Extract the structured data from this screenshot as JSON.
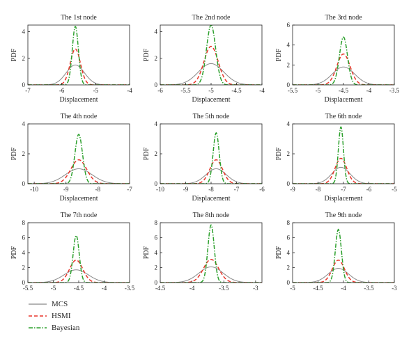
{
  "figure": {
    "panels": [
      {
        "title": "The 1st node",
        "xlabel": "Displacement",
        "ylabel": "PDF"
      },
      {
        "title": "The 2nd node",
        "xlabel": "Displacement",
        "ylabel": "PDF"
      },
      {
        "title": "The 3rd node",
        "xlabel": "Displacement",
        "ylabel": "PDF"
      },
      {
        "title": "The 4th node",
        "xlabel": "Displacement",
        "ylabel": "PDF"
      },
      {
        "title": "The 5th node",
        "xlabel": "Displacement",
        "ylabel": "PDF"
      },
      {
        "title": "The 6th node",
        "xlabel": "Displacement",
        "ylabel": "PDF"
      },
      {
        "title": "The 7th node",
        "xlabel": "Displacement",
        "ylabel": "PDF"
      },
      {
        "title": "The 8th node",
        "xlabel": "Displacement",
        "ylabel": "PDF"
      },
      {
        "title": "The 9th node",
        "xlabel": "Displacement",
        "ylabel": "PDF"
      }
    ]
  },
  "legend": {
    "items": [
      {
        "label": "MCS",
        "color": "#888888",
        "style": "solid"
      },
      {
        "label": "HSMI",
        "color": "#e8352a",
        "style": "dashed"
      },
      {
        "label": "Bayesian",
        "color": "#2ca02c",
        "style": "dashdot"
      }
    ]
  },
  "chart_data": [
    {
      "type": "line",
      "title": "The 1st node",
      "xlabel": "Displacement",
      "ylabel": "PDF",
      "xlim": [
        -7,
        -4
      ],
      "ylim": [
        0,
        4.5
      ],
      "xticks": [
        "-7",
        "-6",
        "-5",
        "-4"
      ],
      "yticks": [
        "0",
        "2",
        "4"
      ],
      "series": [
        {
          "name": "MCS",
          "mean": -5.6,
          "sd": 0.27,
          "peak": 1.5
        },
        {
          "name": "HSMI",
          "mean": -5.6,
          "sd": 0.15,
          "peak": 2.7
        },
        {
          "name": "Bayesian",
          "mean": -5.6,
          "sd": 0.09,
          "peak": 4.4
        }
      ]
    },
    {
      "type": "line",
      "title": "The 2nd node",
      "xlabel": "Displacement",
      "ylabel": "PDF",
      "xlim": [
        -6,
        -4
      ],
      "ylim": [
        0,
        4.5
      ],
      "xticks": [
        "-6",
        "-5.5",
        "-5",
        "-4.5",
        "-4"
      ],
      "yticks": [
        "0",
        "2",
        "4"
      ],
      "series": [
        {
          "name": "MCS",
          "mean": -5.0,
          "sd": 0.25,
          "peak": 1.6
        },
        {
          "name": "HSMI",
          "mean": -5.0,
          "sd": 0.14,
          "peak": 2.9
        },
        {
          "name": "Bayesian",
          "mean": -5.0,
          "sd": 0.09,
          "peak": 4.5
        }
      ]
    },
    {
      "type": "line",
      "title": "The 3rd node",
      "xlabel": "Displacement",
      "ylabel": "PDF",
      "xlim": [
        -5.5,
        -3.5
      ],
      "ylim": [
        0,
        6
      ],
      "xticks": [
        "-5.5",
        "-5",
        "-4.5",
        "-4",
        "-3.5"
      ],
      "yticks": [
        "0",
        "2",
        "4",
        "6"
      ],
      "series": [
        {
          "name": "MCS",
          "mean": -4.5,
          "sd": 0.22,
          "peak": 1.8
        },
        {
          "name": "HSMI",
          "mean": -4.5,
          "sd": 0.13,
          "peak": 3.1
        },
        {
          "name": "Bayesian",
          "mean": -4.5,
          "sd": 0.08,
          "peak": 4.8
        }
      ]
    },
    {
      "type": "line",
      "title": "The 4th node",
      "xlabel": "Displacement",
      "ylabel": "PDF",
      "xlim": [
        -10.2,
        -7
      ],
      "ylim": [
        0,
        4
      ],
      "xticks": [
        "-10",
        "-9",
        "-8",
        "-7"
      ],
      "yticks": [
        "0",
        "2",
        "4"
      ],
      "series": [
        {
          "name": "MCS",
          "mean": -8.6,
          "sd": 0.42,
          "peak": 1.0
        },
        {
          "name": "HSMI",
          "mean": -8.6,
          "sd": 0.25,
          "peak": 1.6
        },
        {
          "name": "Bayesian",
          "mean": -8.6,
          "sd": 0.12,
          "peak": 3.3
        }
      ]
    },
    {
      "type": "line",
      "title": "The 5th node",
      "xlabel": "Displacement",
      "ylabel": "PDF",
      "xlim": [
        -10,
        -6
      ],
      "ylim": [
        0,
        4
      ],
      "xticks": [
        "-10",
        "-9",
        "-8",
        "-7",
        "-6"
      ],
      "yticks": [
        "0",
        "2",
        "4"
      ],
      "series": [
        {
          "name": "MCS",
          "mean": -7.8,
          "sd": 0.4,
          "peak": 1.0
        },
        {
          "name": "HSMI",
          "mean": -7.8,
          "sd": 0.25,
          "peak": 1.6
        },
        {
          "name": "Bayesian",
          "mean": -7.8,
          "sd": 0.12,
          "peak": 3.4
        }
      ]
    },
    {
      "type": "line",
      "title": "The 6th node",
      "xlabel": "Displacement",
      "ylabel": "PDF",
      "xlim": [
        -9,
        -5
      ],
      "ylim": [
        0,
        4
      ],
      "xticks": [
        "-9",
        "-8",
        "-7",
        "-6",
        "-5"
      ],
      "yticks": [
        "0",
        "2",
        "4"
      ],
      "series": [
        {
          "name": "MCS",
          "mean": -7.1,
          "sd": 0.36,
          "peak": 1.1
        },
        {
          "name": "HSMI",
          "mean": -7.1,
          "sd": 0.23,
          "peak": 1.7
        },
        {
          "name": "Bayesian",
          "mean": -7.1,
          "sd": 0.1,
          "peak": 3.8
        }
      ]
    },
    {
      "type": "line",
      "title": "The 7th node",
      "xlabel": "Displacement",
      "ylabel": "PDF",
      "xlim": [
        -5.5,
        -3.5
      ],
      "ylim": [
        0,
        8
      ],
      "xticks": [
        "-5.5",
        "-5",
        "-4.5",
        "-4",
        "-3.5"
      ],
      "yticks": [
        "0",
        "2",
        "4",
        "6",
        "8"
      ],
      "series": [
        {
          "name": "MCS",
          "mean": -4.55,
          "sd": 0.24,
          "peak": 1.7
        },
        {
          "name": "HSMI",
          "mean": -4.55,
          "sd": 0.13,
          "peak": 3.0
        },
        {
          "name": "Bayesian",
          "mean": -4.55,
          "sd": 0.06,
          "peak": 6.3
        }
      ]
    },
    {
      "type": "line",
      "title": "The 8th node",
      "xlabel": "Displacement",
      "ylabel": "PDF",
      "xlim": [
        -4.5,
        -2.9
      ],
      "ylim": [
        0,
        8
      ],
      "xticks": [
        "-4.5",
        "-4",
        "-3.5",
        "-3"
      ],
      "yticks": [
        "0",
        "2",
        "4",
        "6",
        "8"
      ],
      "series": [
        {
          "name": "MCS",
          "mean": -3.7,
          "sd": 0.19,
          "peak": 2.1
        },
        {
          "name": "HSMI",
          "mean": -3.7,
          "sd": 0.12,
          "peak": 3.1
        },
        {
          "name": "Bayesian",
          "mean": -3.7,
          "sd": 0.05,
          "peak": 7.7
        }
      ]
    },
    {
      "type": "line",
      "title": "The 9th node",
      "xlabel": "Displacement",
      "ylabel": "PDF",
      "xlim": [
        -5,
        -3
      ],
      "ylim": [
        0,
        8
      ],
      "xticks": [
        "-5",
        "-4.5",
        "-4",
        "-3.5",
        "-3"
      ],
      "yticks": [
        "0",
        "2",
        "4",
        "6",
        "8"
      ],
      "series": [
        {
          "name": "MCS",
          "mean": -4.1,
          "sd": 0.2,
          "peak": 1.9
        },
        {
          "name": "HSMI",
          "mean": -4.1,
          "sd": 0.12,
          "peak": 3.0
        },
        {
          "name": "Bayesian",
          "mean": -4.1,
          "sd": 0.06,
          "peak": 7.1
        }
      ]
    }
  ]
}
